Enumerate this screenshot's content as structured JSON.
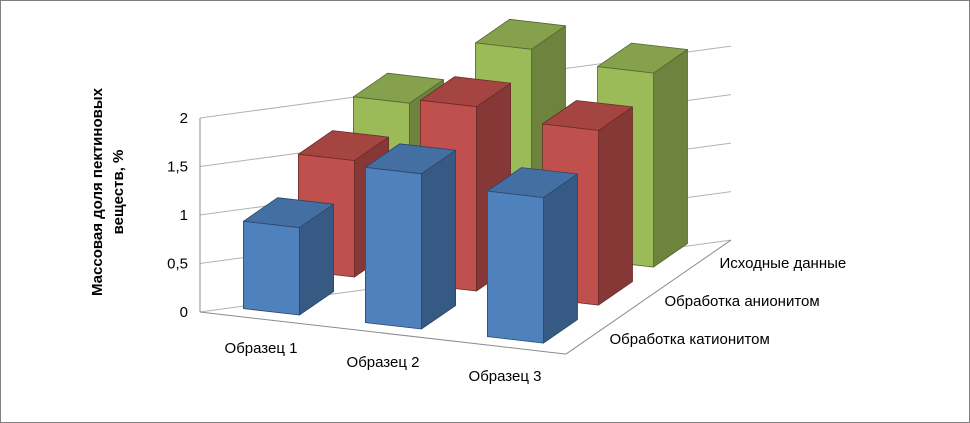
{
  "chart_data": {
    "type": "bar",
    "style": "3d-clustered-column",
    "categories": [
      "Образец 1",
      "Образец 2",
      "Образец 3"
    ],
    "series": [
      {
        "name": "Обработка катионитом",
        "color": "#4F81BD",
        "depth_row": 0,
        "values": [
          0.9,
          1.6,
          1.5
        ]
      },
      {
        "name": "Обработка анионитом",
        "color": "#C0504D",
        "depth_row": 1,
        "values": [
          1.2,
          1.9,
          1.8
        ]
      },
      {
        "name": "Исходные данные",
        "color": "#9BBB59",
        "depth_row": 2,
        "values": [
          1.4,
          2.1,
          2.0
        ]
      }
    ],
    "depth_order": "series[0] is the row nearest the viewer; series names are rendered as depth-axis labels on the right side",
    "ylabel": "Массовая доля пектиновых веществ, %",
    "ylabel_lines": [
      "Массовая доля пектиновых",
      "веществ, %"
    ],
    "yticks": [
      {
        "value": 0,
        "label": "0"
      },
      {
        "value": 0.5,
        "label": "0,5"
      },
      {
        "value": 1,
        "label": "1"
      },
      {
        "value": 1.5,
        "label": "1,5"
      },
      {
        "value": 2,
        "label": "2"
      }
    ],
    "ylim": [
      0,
      2
    ],
    "grid": true,
    "legend": "none"
  },
  "colors": {
    "background": "#ffffff",
    "border": "#808080",
    "gridline": "#b3b3b3",
    "axis": "#8c8c8c",
    "text": "#000000"
  }
}
